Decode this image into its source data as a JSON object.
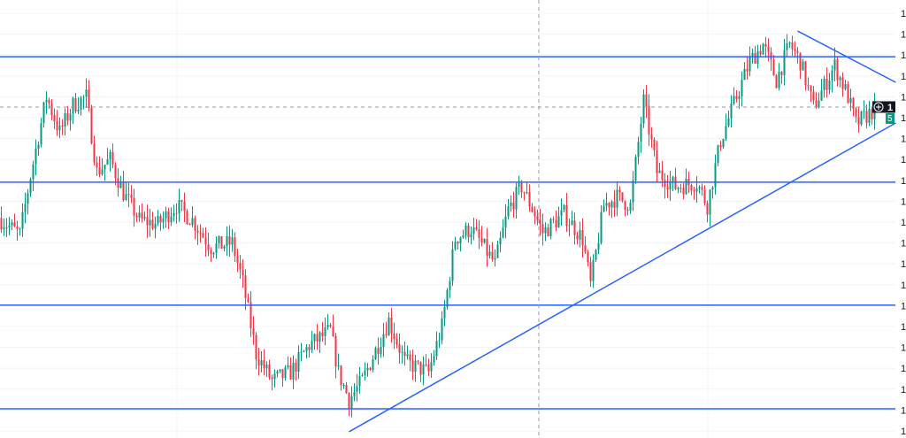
{
  "chart_data": {
    "type": "candlestick",
    "title": "",
    "xlabel": "",
    "ylabel": "",
    "y_axis_tick_labels": [
      "1",
      "1",
      "1",
      "1",
      "1",
      "1",
      "1",
      "1",
      "1",
      "1",
      "1",
      "1",
      "1",
      "1",
      "1",
      "1",
      "1",
      "1",
      "1",
      "1",
      "1"
    ],
    "ylim": [
      -0.3,
      20.9
    ],
    "bar_count": 330,
    "close_path": [
      [
        0,
        10.2
      ],
      [
        8,
        9.4
      ],
      [
        12,
        12.2
      ],
      [
        18,
        16.0
      ],
      [
        23,
        14.3
      ],
      [
        28,
        15.6
      ],
      [
        33,
        16.0
      ],
      [
        37,
        12.4
      ],
      [
        42,
        13.0
      ],
      [
        47,
        11.4
      ],
      [
        53,
        10.1
      ],
      [
        60,
        9.9
      ],
      [
        67,
        10.8
      ],
      [
        73,
        10.1
      ],
      [
        80,
        8.8
      ],
      [
        88,
        9.0
      ],
      [
        92,
        7.1
      ],
      [
        97,
        3.7
      ],
      [
        103,
        2.4
      ],
      [
        110,
        2.8
      ],
      [
        117,
        4.1
      ],
      [
        125,
        4.8
      ],
      [
        128,
        2.8
      ],
      [
        132,
        1.5
      ],
      [
        137,
        2.4
      ],
      [
        147,
        5.3
      ],
      [
        153,
        3.3
      ],
      [
        162,
        2.8
      ],
      [
        167,
        5.0
      ],
      [
        172,
        9.2
      ],
      [
        178,
        9.7
      ],
      [
        187,
        8.0
      ],
      [
        192,
        10.6
      ],
      [
        197,
        11.7
      ],
      [
        202,
        10.4
      ],
      [
        205,
        9.5
      ],
      [
        213,
        10.4
      ],
      [
        220,
        9.2
      ],
      [
        223,
        7.0
      ],
      [
        228,
        10.8
      ],
      [
        233,
        11.2
      ],
      [
        238,
        10.8
      ],
      [
        243,
        15.8
      ],
      [
        248,
        12.4
      ],
      [
        255,
        11.7
      ],
      [
        263,
        11.9
      ],
      [
        267,
        10.8
      ],
      [
        272,
        13.9
      ],
      [
        278,
        16.0
      ],
      [
        283,
        17.7
      ],
      [
        288,
        18.5
      ],
      [
        293,
        16.8
      ],
      [
        298,
        18.5
      ],
      [
        302,
        17.7
      ],
      [
        307,
        15.5
      ],
      [
        315,
        17.5
      ],
      [
        320,
        16.0
      ],
      [
        323,
        14.7
      ],
      [
        330,
        15.4
      ]
    ],
    "horizontal_levels": [
      17.92,
      11.91,
      6.02,
      1.06
    ],
    "trendlines": [
      {
        "from": [
          131,
          -0.04
        ],
        "to": [
          337,
          14.75
        ]
      },
      {
        "from": [
          300,
          19.15
        ],
        "to": [
          337,
          16.69
        ]
      }
    ],
    "crosshair": {
      "bar": 203,
      "price": 15.51
    },
    "price_label": {
      "value": "1",
      "change": "5"
    },
    "colors": {
      "up": "#089981",
      "down": "#f23645",
      "line": "#2962ff",
      "grid": "#f0f3fa",
      "crosshair": "#9598a1",
      "label_bg": "#131722"
    }
  }
}
